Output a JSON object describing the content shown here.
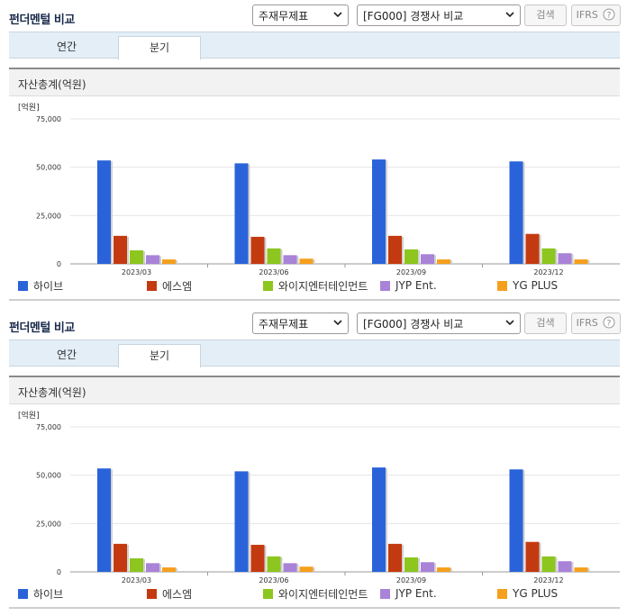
{
  "panels": [
    {
      "title": "펀더멘털 비교",
      "select1": "주재무제표",
      "select2": "[FG000] 경쟁사 비교",
      "search_label": "검색",
      "ifrs_label": "IFRS",
      "tabs": [
        "연간",
        "분기"
      ],
      "active_tab": 1,
      "section_title": "자산총계(억원)"
    },
    {
      "title": "펀더멘털 비교",
      "select1": "주재무제표",
      "select2": "[FG000] 경쟁사 비교",
      "search_label": "검색",
      "ifrs_label": "IFRS",
      "tabs": [
        "연간",
        "분기"
      ],
      "active_tab": 1,
      "section_title": "자산총계(억원)"
    }
  ],
  "colors": {
    "하이브": "#2a63d9",
    "에스엠": "#c43a10",
    "와이지엔터테인먼트": "#8cc61e",
    "JYP Ent.": "#a883d8",
    "YG PLUS": "#f5a01d"
  },
  "chart_data": [
    {
      "type": "bar",
      "unit_label": "[억원]",
      "categories": [
        "2023/03",
        "2023/06",
        "2023/09",
        "2023/12"
      ],
      "ylim": [
        0,
        75000
      ],
      "yticks": [
        "0",
        "25,000",
        "50,000",
        "75,000"
      ],
      "grid": true,
      "legend_position": "bottom",
      "series": [
        {
          "name": "하이브",
          "values": [
            53500,
            52000,
            54000,
            53000
          ]
        },
        {
          "name": "에스엠",
          "values": [
            14500,
            14000,
            14500,
            15500
          ]
        },
        {
          "name": "와이지엔터테인먼트",
          "values": [
            7000,
            8000,
            7500,
            8000
          ]
        },
        {
          "name": "JYP Ent.",
          "values": [
            4500,
            4500,
            5000,
            5500
          ]
        },
        {
          "name": "YG PLUS",
          "values": [
            2300,
            2700,
            2300,
            2300
          ]
        }
      ]
    },
    {
      "type": "bar",
      "unit_label": "[억원]",
      "categories": [
        "2023/03",
        "2023/06",
        "2023/09",
        "2023/12"
      ],
      "ylim": [
        0,
        75000
      ],
      "yticks": [
        "0",
        "25,000",
        "50,000",
        "75,000"
      ],
      "grid": true,
      "legend_position": "bottom",
      "series": [
        {
          "name": "하이브",
          "values": [
            53500,
            52000,
            54000,
            53000
          ]
        },
        {
          "name": "에스엠",
          "values": [
            14500,
            14000,
            14500,
            15500
          ]
        },
        {
          "name": "와이지엔터테인먼트",
          "values": [
            7000,
            8000,
            7500,
            8000
          ]
        },
        {
          "name": "JYP Ent.",
          "values": [
            4500,
            4500,
            5000,
            5500
          ]
        },
        {
          "name": "YG PLUS",
          "values": [
            2300,
            2700,
            2300,
            2300
          ]
        }
      ]
    }
  ]
}
